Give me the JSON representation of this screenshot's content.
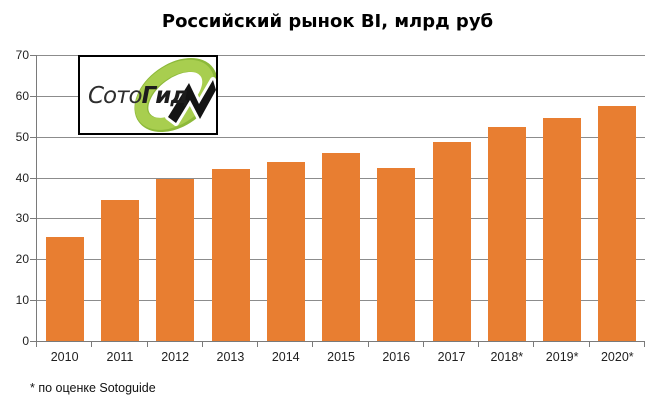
{
  "title": "Российский рынок BI, млрд руб",
  "footnote": "* по оценке Sotoguide",
  "logo": {
    "text_regular": "Сото",
    "text_bold": "Гид",
    "ring_color": "#a8ce4f",
    "ring_shade_color": "#8db93a",
    "arrow_color": "#141414"
  },
  "chart_data": {
    "type": "bar",
    "title": "Российский рынок BI, млрд руб",
    "categories": [
      "2010",
      "2011",
      "2012",
      "2013",
      "2014",
      "2015",
      "2016",
      "2017",
      "2018*",
      "2019*",
      "2020*"
    ],
    "values": [
      25.5,
      34.5,
      39.7,
      42.0,
      43.8,
      46.0,
      42.4,
      48.8,
      52.5,
      54.5,
      57.5
    ],
    "xlabel": "",
    "ylabel": "",
    "ylim": [
      0,
      70
    ],
    "yticks": [
      0,
      10,
      20,
      30,
      40,
      50,
      60,
      70
    ],
    "grid": true,
    "legend": false,
    "bar_color": "#e87e31",
    "gridline_color": "#8c8c8c",
    "axis_color": "#7a7a7a",
    "footnote": "* по оценке Sotoguide"
  }
}
